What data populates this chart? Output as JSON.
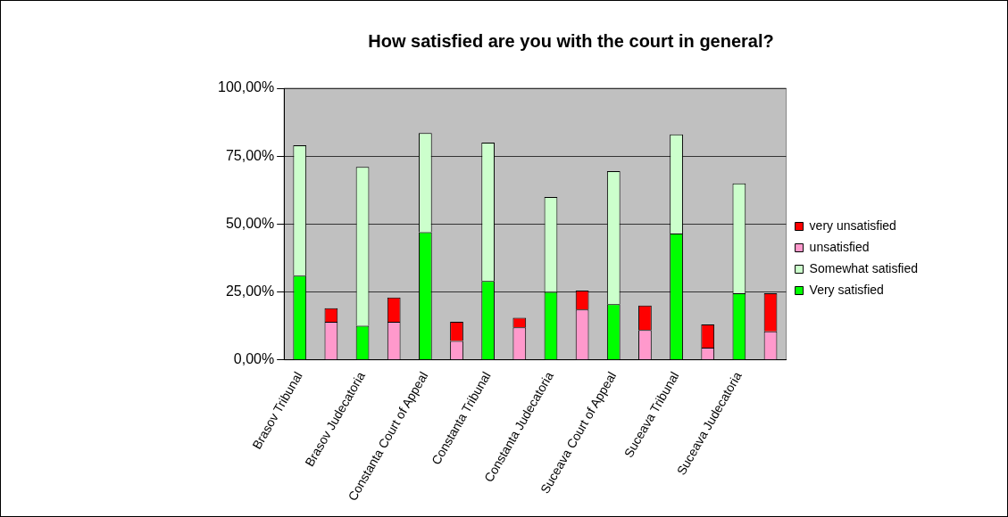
{
  "chart_data": {
    "type": "bar",
    "title": "How satisfied are you with the court in general?",
    "categories": [
      "Brasov Tribunal",
      null,
      "Brasov Judecatoria",
      null,
      "Constanta Court of Appeal",
      null,
      "Constanta Tribunal",
      null,
      "Constanta Judecatoria",
      null,
      "Suceava Court of Appeal",
      null,
      "Suceava Tribunal",
      null,
      "Suceava Judecatoria",
      null
    ],
    "stacked": true,
    "series": [
      {
        "name": "Very satisfied",
        "color": "#00ff00",
        "values": [
          31,
          null,
          12.5,
          null,
          47,
          null,
          29,
          null,
          25,
          null,
          20.5,
          null,
          46.5,
          null,
          24.5,
          null
        ]
      },
      {
        "name": "Somewhat satisfied",
        "color": "#ccffcc",
        "values": [
          48,
          null,
          58.5,
          null,
          36.5,
          null,
          51,
          null,
          35,
          null,
          49,
          null,
          36.5,
          null,
          40.5,
          null
        ]
      },
      {
        "name": "unsatisfied",
        "color": "#ff99cc",
        "values": [
          null,
          14,
          null,
          14,
          null,
          7,
          null,
          12,
          null,
          18.5,
          null,
          11,
          null,
          4.5,
          null,
          10.5
        ]
      },
      {
        "name": "very unsatisfied",
        "color": "#ff0000",
        "values": [
          null,
          5,
          null,
          9,
          null,
          7,
          null,
          3.5,
          null,
          7,
          null,
          9,
          null,
          8.5,
          null,
          14
        ]
      }
    ],
    "ylim": [
      0,
      100
    ],
    "yticks": [
      {
        "value": 0,
        "label": "0,00%"
      },
      {
        "value": 25,
        "label": "25,00%"
      },
      {
        "value": 50,
        "label": "50,00%"
      },
      {
        "value": 75,
        "label": "75,00%"
      },
      {
        "value": 100,
        "label": "100,00%"
      }
    ],
    "grid": "y",
    "legend": "right"
  }
}
